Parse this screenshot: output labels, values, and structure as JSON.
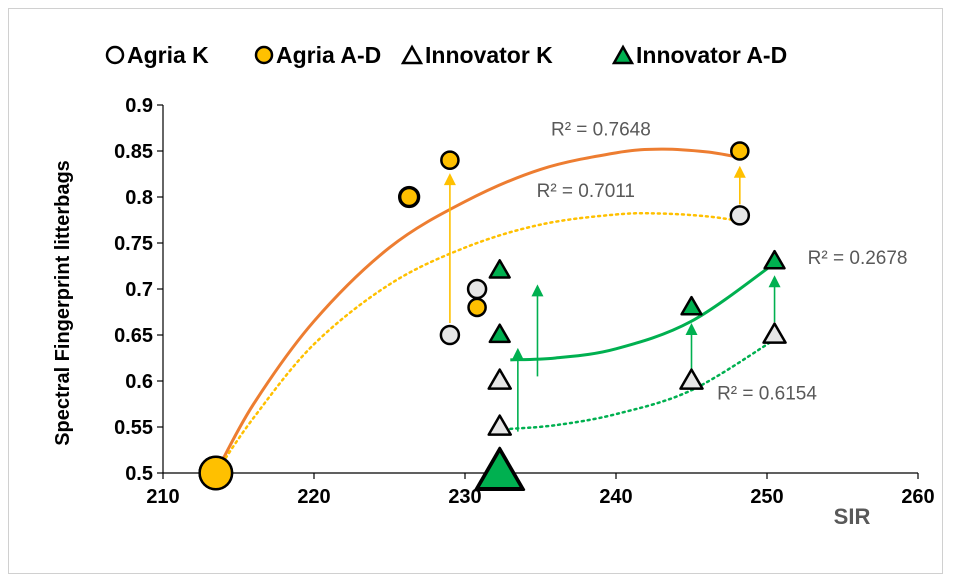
{
  "chart_data": {
    "type": "scatter",
    "xlabel": "SIR",
    "ylabel": "Spectral Fingerprint litterbags",
    "xlim": [
      210,
      260
    ],
    "ylim": [
      0.5,
      0.9
    ],
    "xticks": [
      "210",
      "220",
      "230",
      "240",
      "250",
      "260"
    ],
    "yticks": [
      "0.5",
      "0.55",
      "0.6",
      "0.65",
      "0.7",
      "0.75",
      "0.8",
      "0.85",
      "0.9"
    ],
    "legend_position": "top",
    "colors": {
      "agria_ad": "#FFC000",
      "innovator_ad": "#00B050",
      "agria_trend": "#ED7D31",
      "agria_k_trend": "#FFC000",
      "innov_trend": "#00B050",
      "k_fill": "#E6E6E6"
    },
    "series": [
      {
        "name": "Agria K",
        "marker": "circle",
        "points": [
          {
            "x": 213.5,
            "y": 0.5,
            "s": 1.8
          },
          {
            "x": 226.3,
            "y": 0.8,
            "s": 1.1
          },
          {
            "x": 229.0,
            "y": 0.65,
            "s": 1.0
          },
          {
            "x": 230.8,
            "y": 0.7,
            "s": 1.0
          },
          {
            "x": 248.2,
            "y": 0.78,
            "s": 1.0
          }
        ]
      },
      {
        "name": "Agria A-D",
        "marker": "circle",
        "points": [
          {
            "x": 213.5,
            "y": 0.5,
            "s": 1.8
          },
          {
            "x": 226.3,
            "y": 0.8,
            "s": 1.0
          },
          {
            "x": 229.0,
            "y": 0.84,
            "s": 0.95
          },
          {
            "x": 230.8,
            "y": 0.68,
            "s": 0.95
          },
          {
            "x": 248.2,
            "y": 0.85,
            "s": 0.95
          }
        ]
      },
      {
        "name": "Innovator K",
        "marker": "triangle",
        "points": [
          {
            "x": 232.3,
            "y": 0.5,
            "s": 2.2
          },
          {
            "x": 232.3,
            "y": 0.55,
            "s": 1.0
          },
          {
            "x": 232.3,
            "y": 0.6,
            "s": 1.0
          },
          {
            "x": 245.0,
            "y": 0.6,
            "s": 1.0
          },
          {
            "x": 250.5,
            "y": 0.65,
            "s": 1.0
          }
        ]
      },
      {
        "name": "Innovator A-D",
        "marker": "triangle",
        "points": [
          {
            "x": 232.3,
            "y": 0.5,
            "s": 2.0
          },
          {
            "x": 232.3,
            "y": 0.72,
            "s": 0.9
          },
          {
            "x": 232.3,
            "y": 0.65,
            "s": 0.9
          },
          {
            "x": 245.0,
            "y": 0.68,
            "s": 0.9
          },
          {
            "x": 250.5,
            "y": 0.73,
            "s": 0.9
          }
        ]
      }
    ],
    "trendlines": [
      {
        "label": "R² = 0.7648",
        "color": "#ED7D31",
        "style": "solid",
        "points": [
          [
            213.5,
            0.5
          ],
          [
            216,
            0.575
          ],
          [
            220,
            0.665
          ],
          [
            225,
            0.745
          ],
          [
            230,
            0.795
          ],
          [
            235,
            0.83
          ],
          [
            240,
            0.848
          ],
          [
            243,
            0.852
          ],
          [
            246,
            0.849
          ],
          [
            248.2,
            0.843
          ]
        ],
        "label_pos": [
          239,
          0.867
        ]
      },
      {
        "label": "R² = 0.7011",
        "color": "#FFC000",
        "style": "dotted",
        "points": [
          [
            213.5,
            0.5
          ],
          [
            216,
            0.56
          ],
          [
            220,
            0.64
          ],
          [
            225,
            0.705
          ],
          [
            230,
            0.745
          ],
          [
            235,
            0.77
          ],
          [
            240,
            0.781
          ],
          [
            243,
            0.782
          ],
          [
            246,
            0.779
          ],
          [
            248.2,
            0.774
          ]
        ],
        "label_pos": [
          238,
          0.8
        ]
      },
      {
        "label": "R² = 0.2678",
        "color": "#00B050",
        "style": "solid",
        "points": [
          [
            233,
            0.623
          ],
          [
            236,
            0.625
          ],
          [
            240,
            0.635
          ],
          [
            245,
            0.665
          ],
          [
            250.5,
            0.728
          ]
        ],
        "label_pos": [
          256,
          0.727
        ]
      },
      {
        "label": "R² = 0.6154",
        "color": "#00B050",
        "style": "dotted",
        "points": [
          [
            233,
            0.548
          ],
          [
            236,
            0.552
          ],
          [
            240,
            0.564
          ],
          [
            245,
            0.59
          ],
          [
            250.5,
            0.645
          ]
        ],
        "label_pos": [
          250,
          0.58
        ]
      }
    ],
    "arrows": [
      {
        "color": "#FFC000",
        "from": [
          229.0,
          0.663
        ],
        "to": [
          229.0,
          0.826
        ]
      },
      {
        "color": "#FFC000",
        "from": [
          248.2,
          0.792
        ],
        "to": [
          248.2,
          0.834
        ]
      },
      {
        "color": "#00B050",
        "from": [
          233.5,
          0.545
        ],
        "to": [
          233.5,
          0.636
        ]
      },
      {
        "color": "#00B050",
        "from": [
          234.8,
          0.605
        ],
        "to": [
          234.8,
          0.705
        ]
      },
      {
        "color": "#00B050",
        "from": [
          245.0,
          0.612
        ],
        "to": [
          245.0,
          0.663
        ]
      },
      {
        "color": "#00B050",
        "from": [
          250.5,
          0.664
        ],
        "to": [
          250.5,
          0.715
        ]
      }
    ]
  }
}
